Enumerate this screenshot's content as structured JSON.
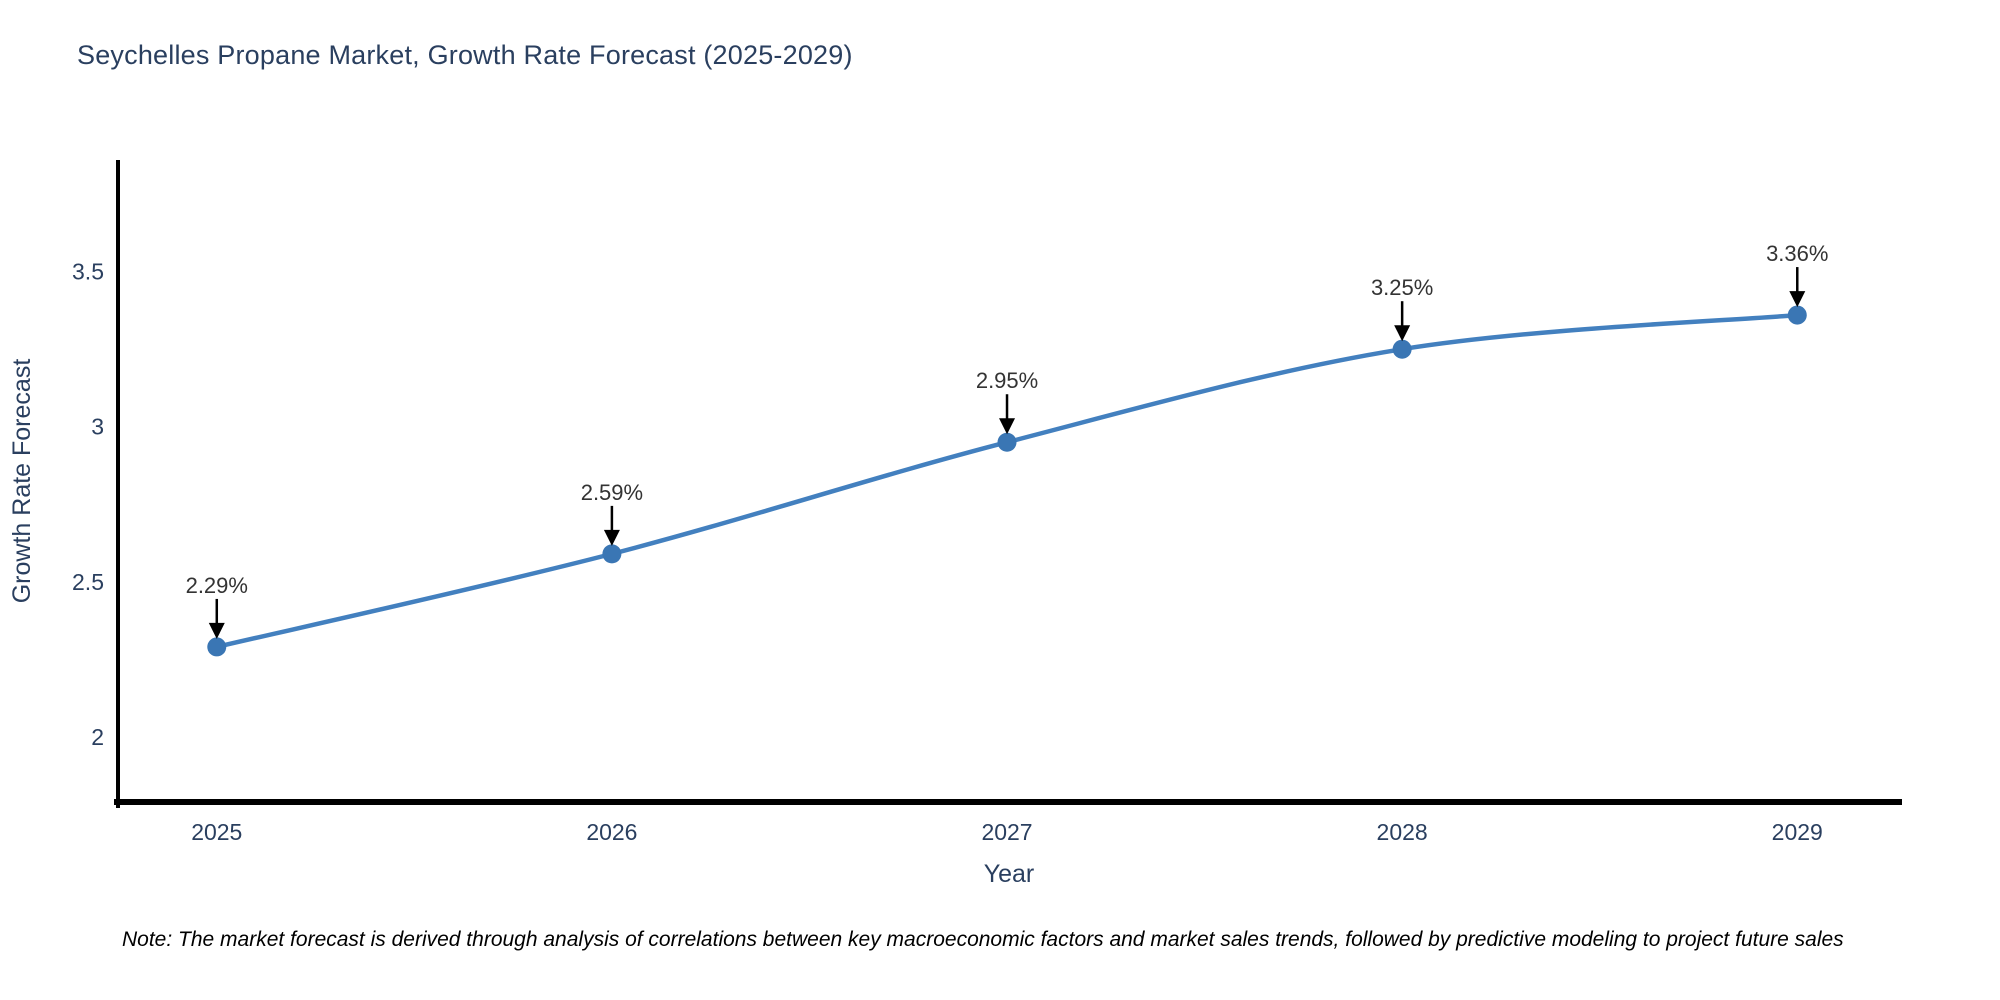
{
  "title": "Seychelles Propane Market, Growth Rate Forecast (2025-2029)",
  "note": "Note: The market forecast is derived through analysis of correlations between key macroeconomic factors and market sales trends, followed by predictive modeling to project future sales",
  "chart_data": {
    "type": "line",
    "title": "Seychelles Propane Market, Growth Rate Forecast (2025-2029)",
    "x": [
      2025,
      2026,
      2027,
      2028,
      2029
    ],
    "values": [
      2.29,
      2.59,
      2.95,
      3.25,
      3.36
    ],
    "point_labels": [
      "2.29%",
      "2.59%",
      "2.95%",
      "3.25%",
      "3.36%"
    ],
    "xlabel": "Year",
    "ylabel": "Growth Rate Forecast",
    "xticks": [
      2025,
      2026,
      2027,
      2028,
      2029
    ],
    "xtick_labels": [
      "2025",
      "2026",
      "2027",
      "2028",
      "2029"
    ],
    "yticks": [
      2,
      2.5,
      3,
      3.5
    ],
    "ytick_labels": [
      "2",
      "2.5",
      "3",
      "3.5"
    ],
    "xlim": [
      2024.75,
      2029.26
    ],
    "ylim": [
      1.79,
      3.86
    ],
    "grid": false,
    "line_shape": "spline",
    "legend": "none",
    "colors": {
      "line": "#4380bf",
      "marker": "#3a76b4",
      "arrow": "#000000",
      "axis_line": "#000000",
      "title_text": "#2a3f5f",
      "axis_text": "#2a3f5f",
      "annotation_text": "#333333"
    }
  }
}
